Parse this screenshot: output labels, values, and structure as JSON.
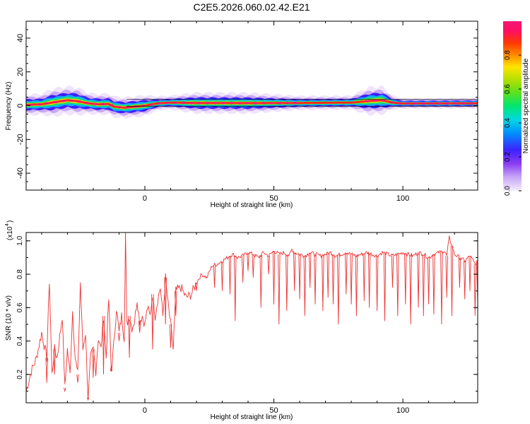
{
  "chart_data": [
    {
      "type": "heatmap",
      "title": "C2E5.2026.060.02.42.E21",
      "xlabel": "Height of straight line (km)",
      "ylabel": "Frequency (Hz)",
      "xlim": [
        -46,
        129
      ],
      "ylim": [
        -50,
        50
      ],
      "x_ticks": [
        0,
        50,
        100
      ],
      "y_ticks": [
        40,
        20,
        0,
        -20,
        -40
      ],
      "colorbar": {
        "label": "Normalized spectral amplitude",
        "range": [
          0,
          1
        ],
        "ticks": [
          "0.0",
          "0.2",
          "0.4",
          "0.6",
          "0.8"
        ],
        "colors": [
          "#f4ecfc",
          "#c8a8f8",
          "#8a3cf2",
          "#3c22ff",
          "#0090ff",
          "#00d8e0",
          "#00e670",
          "#5ee01e",
          "#b8e000",
          "#ffe400",
          "#ff8c00",
          "#ff3a00",
          "#ff1060",
          "#f01874"
        ]
      },
      "ridge": {
        "x": [
          -46,
          -40,
          -36,
          -30,
          -26,
          -22,
          -18,
          -14,
          -12,
          -8,
          -5,
          0,
          5,
          10,
          20,
          40,
          60,
          80,
          87,
          92,
          96,
          100,
          110,
          120,
          129
        ],
        "y": [
          0.5,
          0.8,
          1.8,
          3.2,
          2.6,
          1.4,
          0.8,
          1.0,
          -0.6,
          -1.2,
          -0.8,
          0.0,
          1.4,
          1.8,
          1.6,
          1.5,
          1.6,
          1.8,
          2.8,
          3.2,
          1.8,
          1.3,
          1.3,
          1.4,
          1.4
        ],
        "band_halfwidth": [
          3,
          3,
          4,
          4,
          4,
          3,
          3,
          3,
          3,
          3,
          3,
          3,
          2,
          2,
          3,
          3,
          2,
          2,
          4,
          4,
          2,
          1.5,
          1.5,
          1.5,
          1.5
        ]
      }
    },
    {
      "type": "line",
      "xlabel": "Height of straight line (km)",
      "ylabel": "SNR (10 * v/v)",
      "y_multiplier": "(x10",
      "y_multiplier_exp": "4",
      "y_multiplier_close": ")",
      "xlim": [
        -46,
        129
      ],
      "ylim": [
        0.03,
        1.05
      ],
      "x_ticks": [
        0,
        50,
        100
      ],
      "y_ticks": [
        0.2,
        0.4,
        0.6,
        0.8,
        1.0
      ],
      "color": "#ee3333",
      "series": [
        {
          "x": [
            -46,
            -44,
            -42,
            -40,
            -38,
            -37,
            -36,
            -35,
            -34,
            -32,
            -31,
            -30,
            -29,
            -28,
            -27,
            -26,
            -25,
            -24,
            -23,
            -22,
            -21,
            -20,
            -19,
            -18,
            -17,
            -16,
            -15,
            -14,
            -13,
            -12,
            -11,
            -10,
            -9,
            -8,
            -7.5,
            -7,
            -6,
            -5,
            -4,
            -3,
            -2,
            -1,
            0,
            1,
            2,
            3,
            4,
            5,
            6,
            7,
            8,
            9,
            10,
            11,
            12,
            14,
            16,
            18,
            20,
            22,
            24,
            26,
            28,
            30,
            32,
            34,
            36,
            38,
            40,
            42,
            44,
            46,
            48,
            50,
            52,
            54,
            56,
            57,
            58,
            60,
            62,
            64,
            66,
            68,
            70,
            72,
            74,
            76,
            78,
            80,
            82,
            84,
            86,
            88,
            90,
            92,
            94,
            96,
            98,
            100,
            102,
            104,
            106,
            108,
            110,
            112,
            114,
            116,
            117,
            118,
            120,
            122,
            124,
            126,
            128,
            129
          ],
          "y": [
            0.1,
            0.22,
            0.3,
            0.45,
            0.3,
            0.76,
            0.2,
            0.35,
            0.3,
            0.55,
            0.12,
            0.35,
            0.2,
            0.58,
            0.3,
            0.2,
            0.75,
            0.35,
            0.45,
            0.06,
            0.3,
            0.35,
            0.22,
            0.42,
            0.35,
            0.55,
            0.3,
            0.65,
            0.22,
            0.38,
            0.6,
            0.45,
            0.55,
            0.42,
            1.05,
            0.5,
            0.55,
            0.48,
            0.52,
            0.65,
            0.52,
            0.55,
            0.5,
            0.6,
            0.55,
            0.68,
            0.55,
            0.65,
            0.72,
            0.55,
            0.78,
            0.62,
            0.5,
            0.35,
            0.7,
            0.72,
            0.66,
            0.68,
            0.75,
            0.8,
            0.78,
            0.85,
            0.86,
            0.88,
            0.9,
            0.92,
            0.9,
            0.91,
            0.93,
            0.92,
            0.9,
            0.93,
            0.91,
            0.94,
            0.92,
            0.93,
            0.91,
            0.95,
            0.93,
            0.92,
            0.91,
            0.93,
            0.92,
            0.91,
            0.92,
            0.93,
            0.91,
            0.92,
            0.93,
            0.92,
            0.91,
            0.92,
            0.93,
            0.92,
            0.91,
            0.93,
            0.92,
            0.91,
            0.92,
            0.93,
            0.92,
            0.91,
            0.93,
            0.92,
            0.9,
            0.92,
            0.93,
            0.94,
            0.91,
            1.02,
            0.92,
            0.9,
            0.88,
            0.91,
            0.86,
            0.88
          ]
        }
      ],
      "dips": {
        "x": [
          -38,
          -35,
          -31,
          -26,
          -22,
          -20,
          -16,
          -13,
          -10,
          -6,
          -2,
          3,
          8,
          10,
          12,
          20,
          24,
          27,
          30,
          33,
          35,
          38,
          40,
          42,
          45,
          48,
          50,
          52,
          55,
          58,
          60,
          62,
          64,
          66,
          69,
          71,
          73,
          75,
          78,
          80,
          82,
          85,
          87,
          90,
          93,
          96,
          98,
          101,
          103,
          106,
          108,
          110,
          112,
          115,
          117,
          119,
          122,
          124,
          126,
          128,
          129
        ],
        "y": [
          0.15,
          0.2,
          0.1,
          0.15,
          0.05,
          0.18,
          0.2,
          0.25,
          0.4,
          0.3,
          0.45,
          0.35,
          0.5,
          0.36,
          0.55,
          0.7,
          0.78,
          0.72,
          0.7,
          0.68,
          0.52,
          0.75,
          0.82,
          0.78,
          0.6,
          0.8,
          0.62,
          0.5,
          0.58,
          0.7,
          0.65,
          0.55,
          0.72,
          0.62,
          0.58,
          0.66,
          0.62,
          0.5,
          0.68,
          0.62,
          0.55,
          0.64,
          0.6,
          0.58,
          0.52,
          0.72,
          0.55,
          0.62,
          0.5,
          0.6,
          0.55,
          0.62,
          0.56,
          0.5,
          0.66,
          0.55,
          0.72,
          0.65,
          0.7,
          0.55,
          0.62
        ]
      }
    }
  ]
}
